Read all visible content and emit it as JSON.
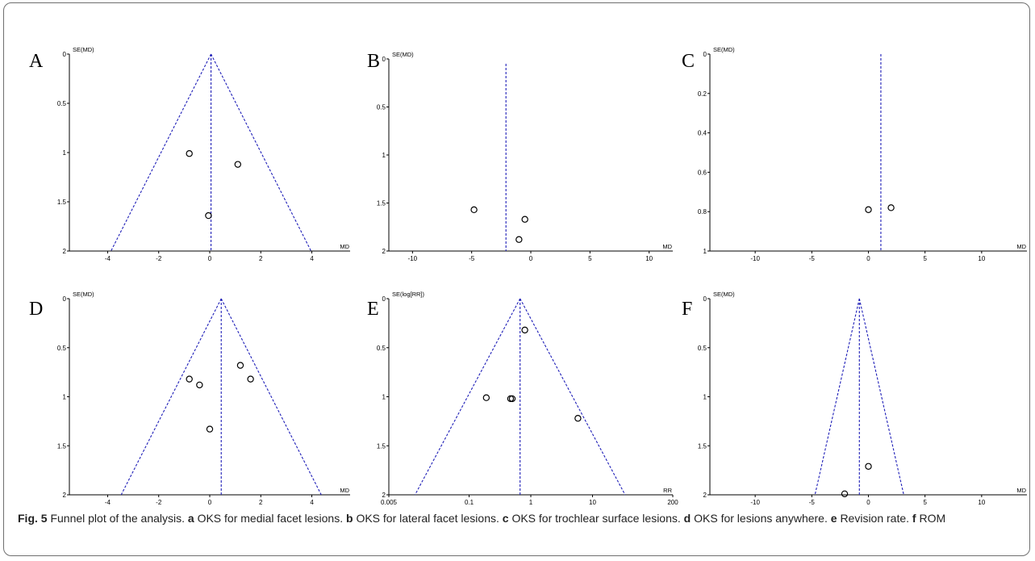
{
  "caption": {
    "label": "Fig. 5",
    "text": "Funnel plot of the analysis.",
    "parts": [
      {
        "key": "a",
        "text": "OKS for medial facet lesions."
      },
      {
        "key": "b",
        "text": "OKS for lateral facet lesions."
      },
      {
        "key": "c",
        "text": "OKS for trochlear surface lesions."
      },
      {
        "key": "d",
        "text": "OKS for lesions anywhere."
      },
      {
        "key": "e",
        "text": "Revision rate."
      },
      {
        "key": "f",
        "text": "ROM"
      }
    ]
  },
  "colors": {
    "funnel": "#1f1fb8",
    "point": "#000000",
    "axis": "#000000"
  },
  "chart_data": [
    {
      "panel": "A",
      "type": "scatter",
      "xscale": "linear",
      "xlabel": "MD",
      "ylabel": "SE(MD)",
      "xlim": [
        -5.5,
        5.5
      ],
      "ylim": [
        0,
        2
      ],
      "y_inverted": true,
      "xticks": [
        -4,
        -2,
        0,
        2,
        4
      ],
      "xtick_labels": [
        "-4",
        "-2",
        "0",
        "2",
        "4"
      ],
      "yticks": [
        0,
        0.5,
        1,
        1.5,
        2
      ],
      "ytick_labels": [
        "0",
        "0.5",
        "1",
        "1.5",
        "2"
      ],
      "pooled": 0.05,
      "funnel": true,
      "funnel_max_se": 2,
      "points": [
        {
          "x": -0.8,
          "y": 1.01
        },
        {
          "x": 1.1,
          "y": 1.12
        },
        {
          "x": -0.05,
          "y": 1.64
        }
      ]
    },
    {
      "panel": "B",
      "type": "scatter",
      "xscale": "linear",
      "xlabel": "MD",
      "ylabel": "SE(MD)",
      "xlim": [
        -12,
        12
      ],
      "ylim": [
        0,
        2
      ],
      "y_inverted": true,
      "xticks": [
        -10,
        -5,
        0,
        5,
        10
      ],
      "xtick_labels": [
        "-10",
        "-5",
        "0",
        "5",
        "10"
      ],
      "yticks": [
        0,
        0.5,
        1,
        1.5,
        2
      ],
      "ytick_labels": [
        "0",
        "0.5",
        "1",
        "1.5",
        "2"
      ],
      "pooled": -2.1,
      "funnel": false,
      "vline_top_se": 0.05,
      "points": [
        {
          "x": -4.8,
          "y": 1.57
        },
        {
          "x": -0.5,
          "y": 1.67
        },
        {
          "x": -1.0,
          "y": 1.88
        }
      ]
    },
    {
      "panel": "C",
      "type": "scatter",
      "xscale": "linear",
      "xlabel": "MD",
      "ylabel": "SE(MD)",
      "xlim": [
        -14,
        14
      ],
      "ylim": [
        0,
        1
      ],
      "y_inverted": true,
      "xticks": [
        -10,
        -5,
        0,
        5,
        10
      ],
      "xtick_labels": [
        "-10",
        "-5",
        "0",
        "5",
        "10"
      ],
      "yticks": [
        0,
        0.2,
        0.4,
        0.6,
        0.8,
        1
      ],
      "ytick_labels": [
        "0",
        "0.2",
        "0.4",
        "0.6",
        "0.8",
        "1"
      ],
      "pooled": 1.1,
      "funnel": false,
      "vline_top_se": 0,
      "points": [
        {
          "x": 0.0,
          "y": 0.79
        },
        {
          "x": 2.0,
          "y": 0.78
        }
      ]
    },
    {
      "panel": "D",
      "type": "scatter",
      "xscale": "linear",
      "xlabel": "MD",
      "ylabel": "SE(MD)",
      "xlim": [
        -5.5,
        5.5
      ],
      "ylim": [
        0,
        2
      ],
      "y_inverted": true,
      "xticks": [
        -4,
        -2,
        0,
        2,
        4
      ],
      "xtick_labels": [
        "-4",
        "-2",
        "0",
        "2",
        "4"
      ],
      "yticks": [
        0,
        0.5,
        1,
        1.5,
        2
      ],
      "ytick_labels": [
        "0",
        "0.5",
        "1",
        "1.5",
        "2"
      ],
      "pooled": 0.45,
      "funnel": true,
      "funnel_max_se": 2,
      "points": [
        {
          "x": -0.8,
          "y": 0.82
        },
        {
          "x": -0.4,
          "y": 0.88
        },
        {
          "x": 1.2,
          "y": 0.68
        },
        {
          "x": 1.6,
          "y": 0.82
        },
        {
          "x": 0.0,
          "y": 1.33
        }
      ]
    },
    {
      "panel": "E",
      "type": "scatter",
      "xscale": "log",
      "xlabel": "RR",
      "ylabel": "SE(log[RR])",
      "xlim": [
        0.005,
        200
      ],
      "ylim": [
        0,
        2
      ],
      "y_inverted": true,
      "xticks": [
        0.005,
        0.1,
        1,
        10,
        200
      ],
      "xtick_labels": [
        "0.005",
        "0.1",
        "1",
        "10",
        "200"
      ],
      "yticks": [
        0,
        0.5,
        1,
        1.5,
        2
      ],
      "ytick_labels": [
        "0",
        "0.5",
        "1",
        "1.5",
        "2"
      ],
      "pooled": 0.67,
      "funnel": true,
      "funnel_max_se": 2,
      "points": [
        {
          "x": 0.8,
          "y": 0.32
        },
        {
          "x": 0.19,
          "y": 1.01
        },
        {
          "x": 0.47,
          "y": 1.02
        },
        {
          "x": 0.5,
          "y": 1.02
        },
        {
          "x": 5.8,
          "y": 1.22
        }
      ]
    },
    {
      "panel": "F",
      "type": "scatter",
      "xscale": "linear",
      "xlabel": "MD",
      "ylabel": "SE(MD)",
      "xlim": [
        -14,
        14
      ],
      "ylim": [
        0,
        2
      ],
      "y_inverted": true,
      "xticks": [
        -10,
        -5,
        0,
        5,
        10
      ],
      "xtick_labels": [
        "-10",
        "-5",
        "0",
        "5",
        "10"
      ],
      "yticks": [
        0,
        0.5,
        1,
        1.5,
        2
      ],
      "ytick_labels": [
        "0",
        "0.5",
        "1",
        "1.5",
        "2"
      ],
      "pooled": -0.8,
      "funnel": true,
      "funnel_max_se": 2,
      "points": [
        {
          "x": 0.0,
          "y": 1.71
        },
        {
          "x": -2.1,
          "y": 1.99
        }
      ]
    }
  ]
}
